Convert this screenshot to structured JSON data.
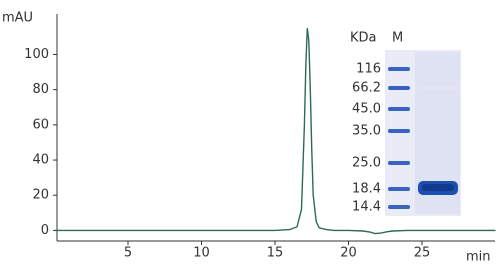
{
  "chart_data": {
    "type": "line",
    "y_label": "mAU",
    "x_label": "min",
    "x": [
      0,
      2,
      4,
      6,
      8,
      10,
      12,
      14,
      15,
      16,
      16.5,
      16.8,
      17.0,
      17.1,
      17.2,
      17.3,
      17.4,
      17.5,
      17.6,
      17.8,
      18,
      18.5,
      19,
      20,
      21,
      21.5,
      21.8,
      22.2,
      22.6,
      23,
      24,
      26,
      28,
      30
    ],
    "series": [
      {
        "color": "#2e6b4f",
        "values": [
          0,
          0,
          0,
          0,
          0,
          0,
          0,
          0,
          0,
          0.5,
          2,
          12,
          60,
          95,
          115,
          108,
          80,
          45,
          20,
          5,
          1.5,
          0.5,
          0,
          0,
          -0.3,
          -1,
          -1.8,
          -1.5,
          -0.8,
          -0.3,
          0,
          0,
          0,
          0
        ]
      }
    ],
    "xlim": [
      0,
      30
    ],
    "xticks": [
      5,
      10,
      15,
      20,
      25
    ],
    "ylim": [
      -6,
      123
    ],
    "yticks": [
      0,
      20,
      40,
      60,
      80,
      100
    ],
    "inset": {
      "unit_label": "KDa",
      "lane_label": "M",
      "markers": [
        "116",
        "66.2",
        "45.0",
        "35.0",
        "25.0",
        "18.4",
        "14.4"
      ]
    }
  }
}
